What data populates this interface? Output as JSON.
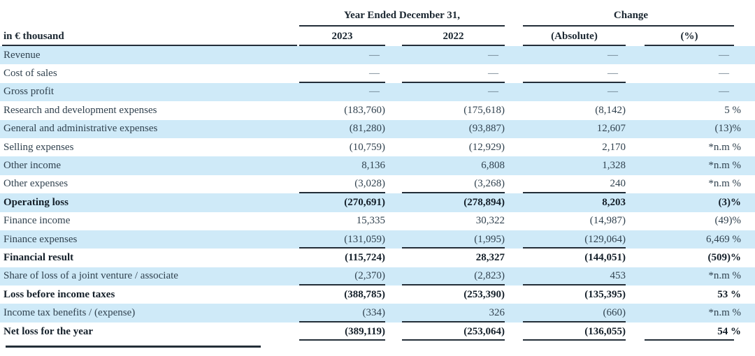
{
  "colors": {
    "band_blue": "#cfeaf8",
    "text": "#31424f",
    "bold_text": "#141f29",
    "rule_line": "#232e38"
  },
  "header": {
    "group_year": "Year Ended December 31,",
    "group_change": "Change",
    "unit_label": "in € thousand",
    "columns": [
      "2023",
      "2022",
      "(Absolute)",
      "(%)"
    ]
  },
  "rows": [
    {
      "label": "Revenue",
      "values": [
        "—",
        "—",
        "—",
        "—"
      ],
      "bold": false,
      "band": true,
      "underline": 0
    },
    {
      "label": "Cost of sales",
      "values": [
        "—",
        "—",
        "—",
        "—"
      ],
      "bold": false,
      "band": false,
      "underline": 3
    },
    {
      "label": "Gross profit",
      "values": [
        "—",
        "—",
        "—",
        "—"
      ],
      "bold": false,
      "band": true,
      "underline": 0
    },
    {
      "label": "Research and development expenses",
      "values": [
        "(183,760)",
        "(175,618)",
        "(8,142)",
        "5 %"
      ],
      "bold": false,
      "band": false,
      "underline": 0
    },
    {
      "label": "General and administrative expenses",
      "values": [
        "(81,280)",
        "(93,887)",
        "12,607",
        "(13)%"
      ],
      "bold": false,
      "band": true,
      "underline": 0
    },
    {
      "label": "Selling expenses",
      "values": [
        "(10,759)",
        "(12,929)",
        "2,170",
        "*n.m %"
      ],
      "bold": false,
      "band": false,
      "underline": 0
    },
    {
      "label": "Other income",
      "values": [
        "8,136",
        "6,808",
        "1,328",
        "*n.m %"
      ],
      "bold": false,
      "band": true,
      "underline": 0
    },
    {
      "label": "Other expenses",
      "values": [
        "(3,028)",
        "(3,268)",
        "240",
        "*n.m %"
      ],
      "bold": false,
      "band": false,
      "underline": 3
    },
    {
      "label": "Operating loss",
      "values": [
        "(270,691)",
        "(278,894)",
        "8,203",
        "(3)%"
      ],
      "bold": true,
      "band": true,
      "underline": 0
    },
    {
      "label": "Finance income",
      "values": [
        "15,335",
        "30,322",
        "(14,987)",
        "(49)%"
      ],
      "bold": false,
      "band": false,
      "underline": 0
    },
    {
      "label": "Finance expenses",
      "values": [
        "(131,059)",
        "(1,995)",
        "(129,064)",
        "6,469 %"
      ],
      "bold": false,
      "band": true,
      "underline": 3
    },
    {
      "label": "Financial result",
      "values": [
        "(115,724)",
        "28,327",
        "(144,051)",
        "(509)%"
      ],
      "bold": true,
      "band": false,
      "underline": 0
    },
    {
      "label": "Share of loss of a joint venture / associate",
      "values": [
        "(2,370)",
        "(2,823)",
        "453",
        "*n.m %"
      ],
      "bold": false,
      "band": true,
      "underline": 3
    },
    {
      "label": "Loss before income taxes",
      "values": [
        "(388,785)",
        "(253,390)",
        "(135,395)",
        "53 %"
      ],
      "bold": true,
      "band": false,
      "underline": 0
    },
    {
      "label": "Income tax benefits / (expense)",
      "values": [
        "(334)",
        "326",
        "(660)",
        "*n.m %"
      ],
      "bold": false,
      "band": true,
      "underline": 3
    },
    {
      "label": "Net loss for the year",
      "values": [
        "(389,119)",
        "(253,064)",
        "(136,055)",
        "54 %"
      ],
      "bold": true,
      "band": false,
      "underline": 4
    }
  ]
}
